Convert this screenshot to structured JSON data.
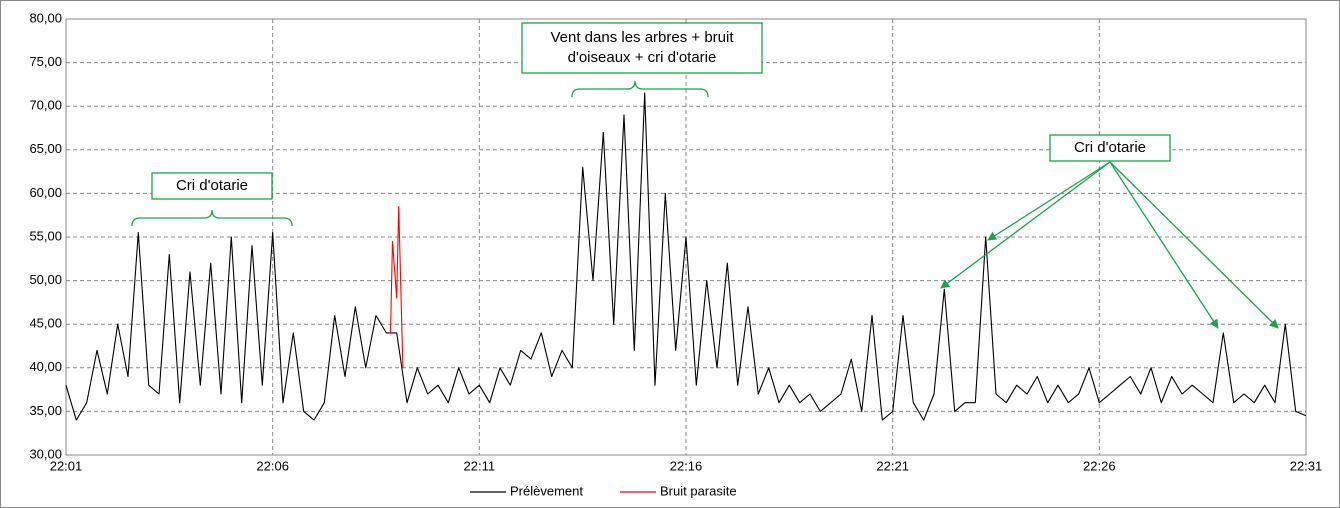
{
  "chart_data": {
    "type": "line",
    "xlim": [
      1321,
      1351
    ],
    "xticks": [
      {
        "value": 1321,
        "label": "22:01"
      },
      {
        "value": 1326,
        "label": "22:06"
      },
      {
        "value": 1331,
        "label": "22:11"
      },
      {
        "value": 1336,
        "label": "22:16"
      },
      {
        "value": 1341,
        "label": "22:21"
      },
      {
        "value": 1346,
        "label": "22:26"
      },
      {
        "value": 1351,
        "label": "22:31"
      }
    ],
    "ylim": [
      30,
      80
    ],
    "yticks": [
      {
        "value": 30,
        "label": "30,00"
      },
      {
        "value": 35,
        "label": "35,00"
      },
      {
        "value": 40,
        "label": "40,00"
      },
      {
        "value": 45,
        "label": "45,00"
      },
      {
        "value": 50,
        "label": "50,00"
      },
      {
        "value": 55,
        "label": "55,00"
      },
      {
        "value": 60,
        "label": "60,00"
      },
      {
        "value": 65,
        "label": "65,00"
      },
      {
        "value": 70,
        "label": "70,00"
      },
      {
        "value": 75,
        "label": "75,00"
      },
      {
        "value": 80,
        "label": "80,00"
      }
    ],
    "grid": true,
    "legend": "bottom",
    "series": [
      {
        "name": "Prélèvement",
        "color": "#000000",
        "x": [
          1321,
          1321.25,
          1321.5,
          1321.75,
          1322,
          1322.25,
          1322.5,
          1322.75,
          1323,
          1323.25,
          1323.5,
          1323.75,
          1324,
          1324.25,
          1324.5,
          1324.75,
          1325,
          1325.25,
          1325.5,
          1325.75,
          1326,
          1326.25,
          1326.5,
          1326.75,
          1327,
          1327.25,
          1327.5,
          1327.75,
          1328,
          1328.25,
          1328.5,
          1328.75,
          1329,
          1329.25,
          1329.5,
          1329.75,
          1330,
          1330.25,
          1330.5,
          1330.75,
          1331,
          1331.25,
          1331.5,
          1331.75,
          1332,
          1332.25,
          1332.5,
          1332.75,
          1333,
          1333.25,
          1333.5,
          1333.75,
          1334,
          1334.25,
          1334.5,
          1334.75,
          1335,
          1335.25,
          1335.5,
          1335.75,
          1336,
          1336.25,
          1336.5,
          1336.75,
          1337,
          1337.25,
          1337.5,
          1337.75,
          1338,
          1338.25,
          1338.5,
          1338.75,
          1339,
          1339.25,
          1339.5,
          1339.75,
          1340,
          1340.25,
          1340.5,
          1340.75,
          1341,
          1341.25,
          1341.5,
          1341.75,
          1342,
          1342.25,
          1342.5,
          1342.75,
          1343,
          1343.25,
          1343.5,
          1343.75,
          1344,
          1344.25,
          1344.5,
          1344.75,
          1345,
          1345.25,
          1345.5,
          1345.75,
          1346,
          1346.25,
          1346.5,
          1346.75,
          1347,
          1347.25,
          1347.5,
          1347.75,
          1348,
          1348.25,
          1348.5,
          1348.75,
          1349,
          1349.25,
          1349.5,
          1349.75,
          1350,
          1350.25,
          1350.5,
          1350.75,
          1351
        ],
        "values": [
          38,
          34,
          36,
          42,
          37,
          45,
          39,
          55.5,
          38,
          37,
          53,
          36,
          51,
          38,
          52,
          37,
          55,
          36,
          54,
          38,
          55.5,
          36,
          44,
          35,
          34,
          36,
          46,
          39,
          47,
          40,
          46,
          44,
          44,
          36,
          40,
          37,
          38,
          36,
          40,
          37,
          38,
          36,
          40,
          38,
          42,
          41,
          44,
          39,
          42,
          40,
          63,
          50,
          67,
          45,
          69,
          42,
          71.5,
          38,
          60,
          42,
          55,
          38,
          50,
          40,
          52,
          38,
          47,
          37,
          40,
          36,
          38,
          36,
          37,
          35,
          36,
          37,
          41,
          35,
          46,
          34,
          35,
          46,
          36,
          34,
          37,
          49,
          35,
          36,
          36,
          55,
          37,
          36,
          38,
          37,
          39,
          36,
          38,
          36,
          37,
          40,
          36,
          37,
          38,
          39,
          37,
          40,
          36,
          39,
          37,
          38,
          37,
          36,
          44,
          36,
          37,
          36,
          38,
          36,
          45,
          35,
          34.5
        ]
      },
      {
        "name": "Bruit parasite",
        "color": "#ff0000",
        "x": [
          1328.85,
          1328.9,
          1329,
          1329.05,
          1329.15
        ],
        "values": [
          44,
          54.5,
          48,
          58.5,
          40
        ]
      }
    ],
    "annotations": [
      {
        "lines": [
          "Cri d'otarie"
        ]
      },
      {
        "lines": [
          "Vent dans les arbres  + bruit",
          "d'oiseaux + cri d'otarie"
        ]
      },
      {
        "lines": [
          "Cri d'otarie"
        ]
      }
    ]
  }
}
